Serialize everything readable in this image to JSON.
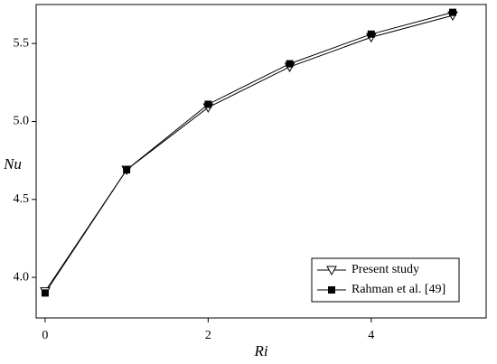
{
  "chart_data": {
    "type": "line",
    "x_label": "Ri",
    "y_label": "Nu",
    "x": [
      0,
      1,
      2,
      3,
      4,
      5
    ],
    "series": [
      {
        "name": "Present study",
        "color": "#000000",
        "marker": "triangle-down-open",
        "values": [
          3.91,
          4.69,
          5.09,
          5.35,
          5.54,
          5.68
        ]
      },
      {
        "name": "Rahman et al. [49]",
        "color": "#000000",
        "marker": "square-filled",
        "values": [
          3.9,
          4.69,
          5.11,
          5.37,
          5.56,
          5.7
        ]
      }
    ],
    "xlim": [
      -0.11,
      5.41
    ],
    "ylim": [
      3.74,
      5.75
    ],
    "xticks": [
      0,
      2,
      4
    ],
    "yticks": [
      {
        "value": 4,
        "label": "4.0"
      },
      4.5,
      {
        "value": 5,
        "label": "5.0"
      },
      5.5
    ],
    "legend": "lower right",
    "grid": false
  }
}
